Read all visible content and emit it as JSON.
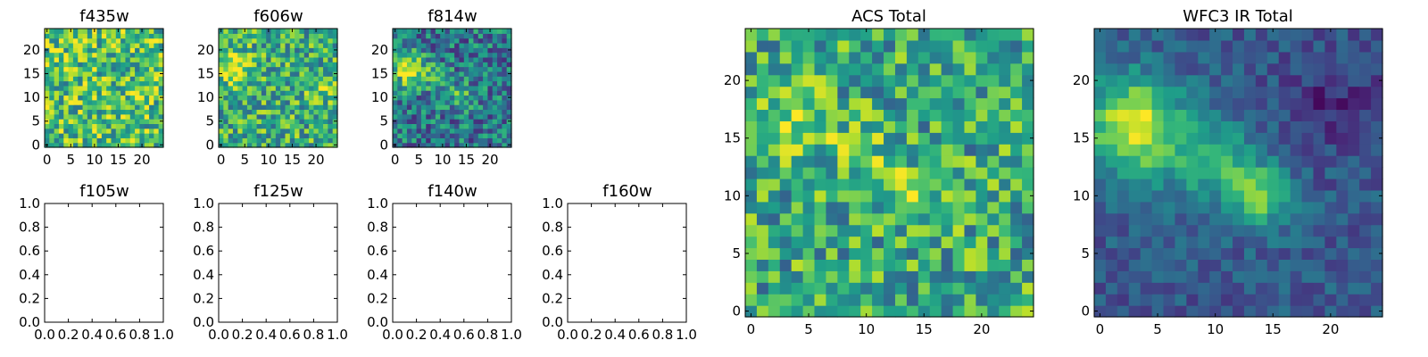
{
  "figure": {
    "background": "#ffffff",
    "colormap": "viridis"
  },
  "chart_data": [
    {
      "id": "f435w",
      "type": "heatmap",
      "title": "f435w",
      "size": 25,
      "seed": 11,
      "base": 0.7,
      "noise": 0.32,
      "blobs": [],
      "xticks": [
        "0",
        "5",
        "10",
        "15",
        "20"
      ],
      "yticks": [
        "0",
        "5",
        "10",
        "15",
        "20"
      ]
    },
    {
      "id": "f606w",
      "type": "heatmap",
      "title": "f606w",
      "size": 25,
      "seed": 23,
      "base": 0.62,
      "noise": 0.3,
      "blobs": [
        [
          3,
          16,
          2.5,
          0.35
        ],
        [
          22,
          12,
          2,
          0.2
        ]
      ],
      "xticks": [
        "0",
        "5",
        "10",
        "15",
        "20"
      ],
      "yticks": [
        "0",
        "5",
        "10",
        "15",
        "20"
      ]
    },
    {
      "id": "f814w",
      "type": "heatmap",
      "title": "f814w",
      "size": 25,
      "seed": 37,
      "base": 0.4,
      "noise": 0.28,
      "blobs": [
        [
          3,
          16,
          2.5,
          0.55
        ],
        [
          9,
          14,
          2,
          0.2
        ],
        [
          14,
          10,
          1.8,
          0.3
        ]
      ],
      "xticks": [
        "0",
        "5",
        "10",
        "15",
        "20"
      ],
      "yticks": [
        "0",
        "5",
        "10",
        "15",
        "20"
      ]
    },
    {
      "id": "f105w",
      "type": "empty",
      "title": "f105w",
      "xticks": [
        "0.0",
        "0.2",
        "0.4",
        "0.6",
        "0.8",
        "1.0"
      ],
      "yticks": [
        "0.0",
        "0.2",
        "0.4",
        "0.6",
        "0.8",
        "1.0"
      ]
    },
    {
      "id": "f125w",
      "type": "empty",
      "title": "f125w",
      "xticks": [
        "0.0",
        "0.2",
        "0.4",
        "0.6",
        "0.8",
        "1.0"
      ],
      "yticks": [
        "0.0",
        "0.2",
        "0.4",
        "0.6",
        "0.8",
        "1.0"
      ]
    },
    {
      "id": "f140w",
      "type": "empty",
      "title": "f140w",
      "xticks": [
        "0.0",
        "0.2",
        "0.4",
        "0.6",
        "0.8",
        "1.0"
      ],
      "yticks": [
        "0.0",
        "0.2",
        "0.4",
        "0.6",
        "0.8",
        "1.0"
      ]
    },
    {
      "id": "f160w",
      "type": "empty",
      "title": "f160w",
      "xticks": [
        "0.0",
        "0.2",
        "0.4",
        "0.6",
        "0.8",
        "1.0"
      ],
      "yticks": [
        "0.0",
        "0.2",
        "0.4",
        "0.6",
        "0.8",
        "1.0"
      ]
    },
    {
      "id": "acs-total",
      "type": "heatmap",
      "title": "ACS Total",
      "size": 25,
      "seed": 51,
      "base": 0.6,
      "noise": 0.3,
      "blobs": [
        [
          3,
          16,
          2.5,
          0.3
        ],
        [
          14,
          10,
          2,
          0.3
        ],
        [
          10,
          14,
          1.5,
          0.15
        ]
      ],
      "xticks": [
        "0",
        "5",
        "10",
        "15",
        "20"
      ],
      "yticks": [
        "0",
        "5",
        "10",
        "15",
        "20"
      ]
    },
    {
      "id": "wfc3-ir-total",
      "type": "heatmap",
      "title": "WFC3 IR Total",
      "size": 25,
      "seed": 67,
      "base": 0.28,
      "noise": 0.12,
      "blobs": [
        [
          3,
          16,
          3,
          0.7
        ],
        [
          10,
          13,
          2.5,
          0.35
        ],
        [
          14,
          10,
          2,
          0.45
        ],
        [
          20,
          18,
          3,
          -0.15
        ]
      ],
      "xticks": [
        "0",
        "5",
        "10",
        "15",
        "20"
      ],
      "yticks": [
        "0",
        "5",
        "10",
        "15",
        "20"
      ]
    }
  ]
}
